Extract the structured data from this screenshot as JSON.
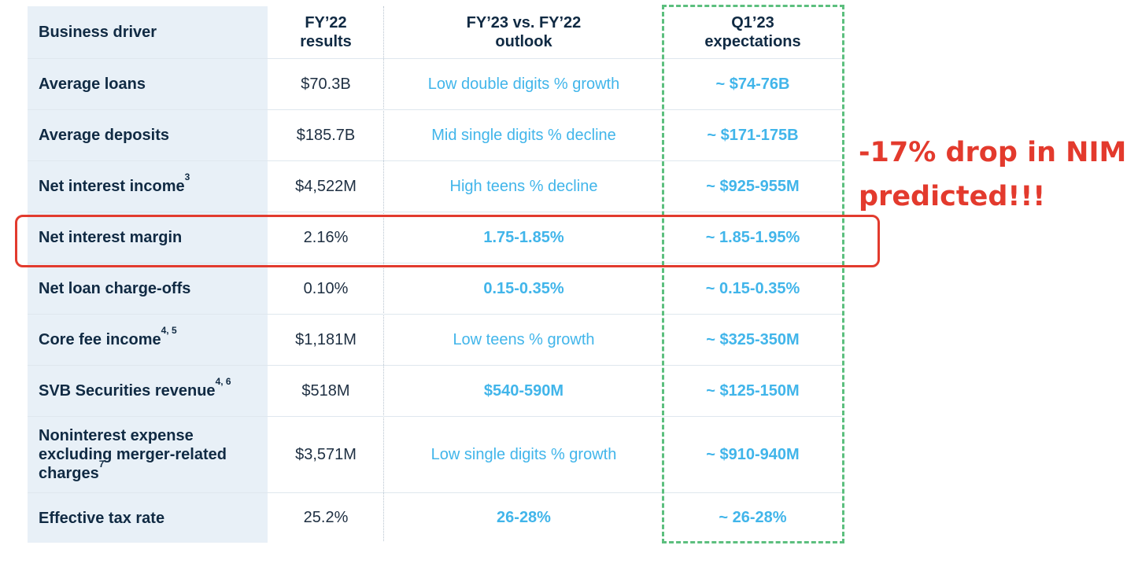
{
  "headers": {
    "driver": "Business driver",
    "fy22_line1": "FY’22",
    "fy22_line2": "results",
    "outlook_line1": "FY’23 vs. FY’22",
    "outlook_line2": "outlook",
    "q1_line1": "Q1’23",
    "q1_line2": "expectations"
  },
  "rows": [
    {
      "driver": "Average loans",
      "sup": "",
      "fy22": "$70.3B",
      "outlook": "Low double digits % growth",
      "q1": "~ $74-76B"
    },
    {
      "driver": "Average deposits",
      "sup": "",
      "fy22": "$185.7B",
      "outlook": "Mid single digits % decline",
      "q1": "~ $171-175B"
    },
    {
      "driver": "Net interest income",
      "sup": "3",
      "fy22": "$4,522M",
      "outlook": "High teens % decline",
      "q1": "~ $925-955M"
    },
    {
      "driver": "Net interest margin",
      "sup": "",
      "fy22": "2.16%",
      "outlook": "1.75-1.85%",
      "q1": "~ 1.85-1.95%"
    },
    {
      "driver": "Net loan charge-offs",
      "sup": "",
      "fy22": "0.10%",
      "outlook": "0.15-0.35%",
      "q1": "~ 0.15-0.35%"
    },
    {
      "driver": "Core fee income",
      "sup": "4, 5",
      "fy22": "$1,181M",
      "outlook": "Low teens % growth",
      "q1": "~ $325-350M"
    },
    {
      "driver": "SVB Securities revenue",
      "sup": "4, 6",
      "fy22": "$518M",
      "outlook": "$540-590M",
      "q1": "~ $125-150M"
    },
    {
      "driver_line1": "Noninterest expense",
      "driver_line2": "excluding merger-related",
      "driver_line3": "charges",
      "sup": "7",
      "fy22": "$3,571M",
      "outlook": "Low single digits % growth",
      "q1": "~ $910-940M"
    },
    {
      "driver": "Effective tax rate",
      "sup": "",
      "fy22": "25.2%",
      "outlook": "26-28%",
      "q1": "~ 26-28%"
    }
  ],
  "annotation": {
    "line1": "-17% drop in NIM",
    "line2": "predicted!!!"
  },
  "colors": {
    "driver_bg": "#e8f0f7",
    "navy_text": "#102a43",
    "blue_text": "#41b5ea",
    "green_dash": "#5cbf7e",
    "red_annotation": "#e33a2d"
  }
}
